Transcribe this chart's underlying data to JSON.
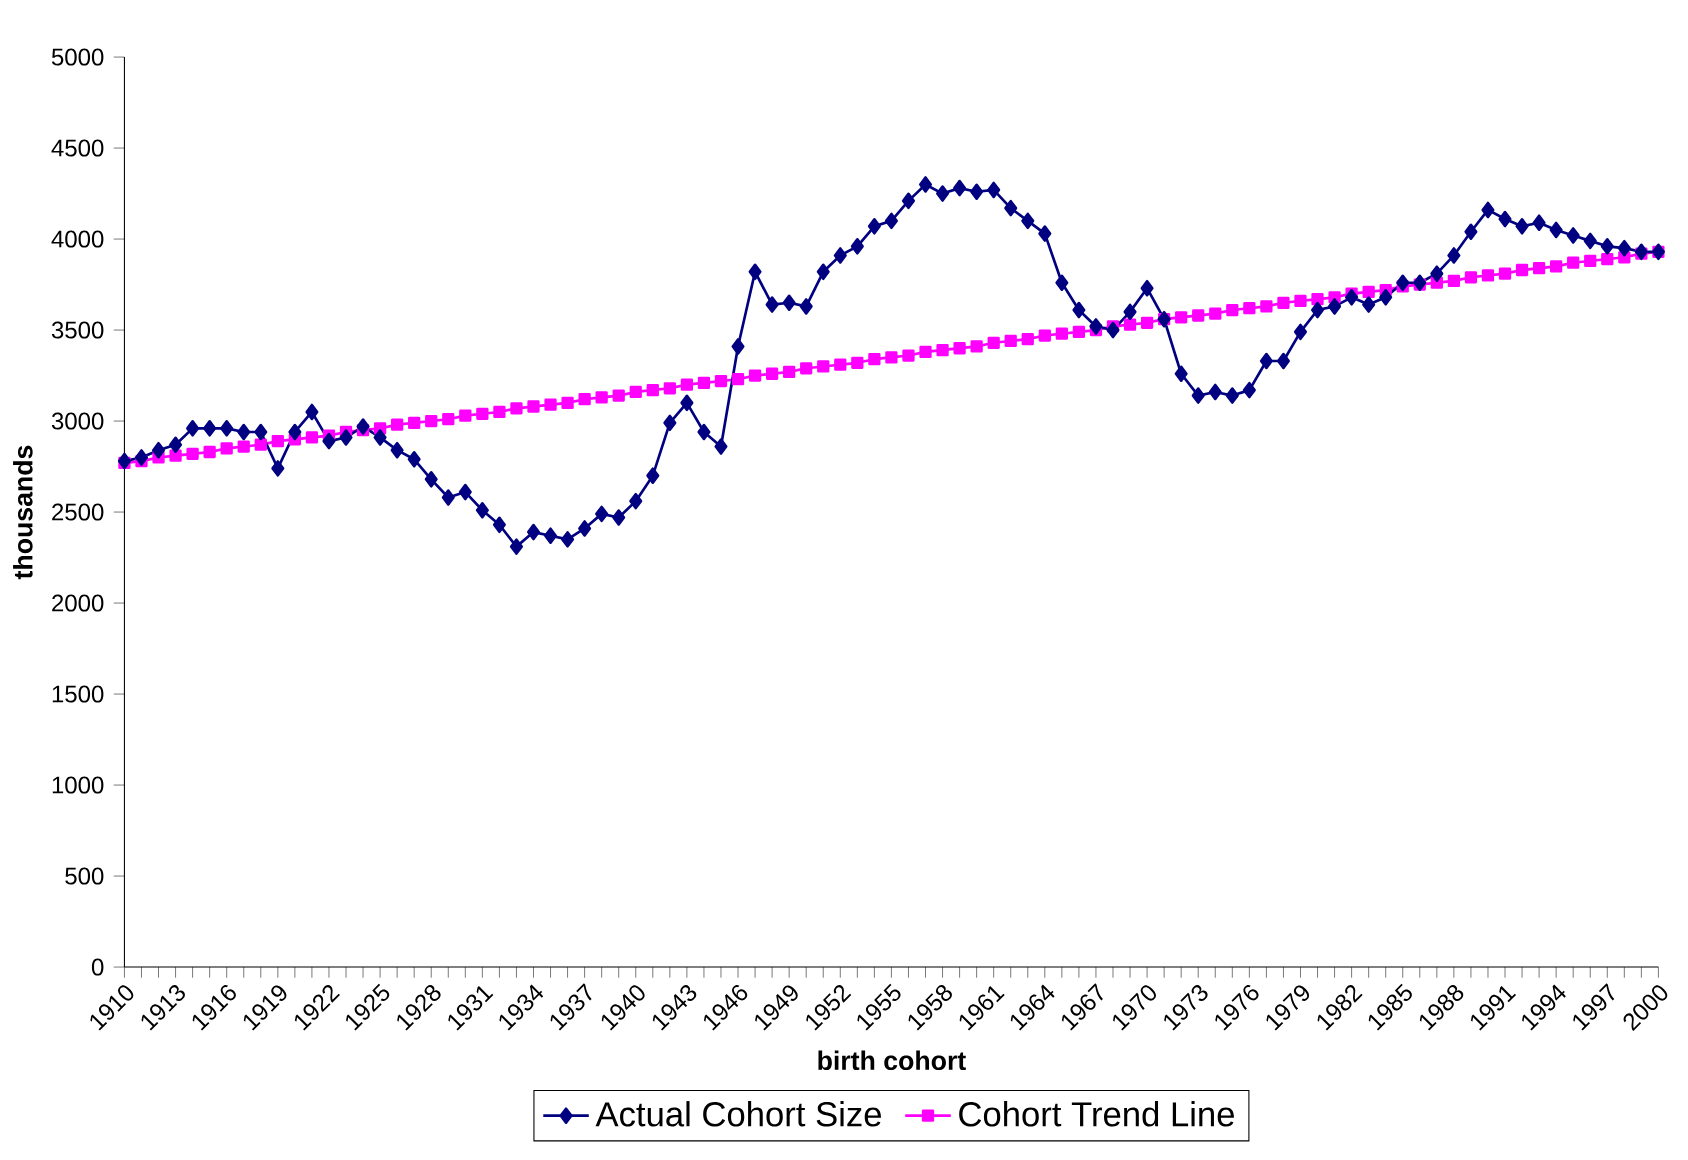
{
  "chart_data": {
    "type": "line",
    "xlabel": "birth cohort",
    "ylabel": "thousands",
    "categories": [
      "1910",
      null,
      null,
      "1913",
      null,
      null,
      "1916",
      null,
      null,
      "1919",
      null,
      null,
      "1922",
      null,
      null,
      "1925",
      null,
      null,
      "1928",
      null,
      null,
      "1931",
      null,
      null,
      "1934",
      null,
      null,
      "1937",
      null,
      null,
      "1940",
      null,
      null,
      "1943",
      null,
      null,
      "1946",
      null,
      null,
      "1949",
      null,
      null,
      "1952",
      null,
      null,
      "1955",
      null,
      null,
      "1958",
      null,
      null,
      "1961",
      null,
      null,
      "1964",
      null,
      null,
      "1967",
      null,
      null,
      "1970",
      null,
      null,
      "1973",
      null,
      null,
      "1976",
      null,
      null,
      "1979",
      null,
      null,
      "1982",
      null,
      null,
      "1985",
      null,
      null,
      "1988",
      null,
      null,
      "1991",
      null,
      null,
      "1994",
      null,
      null,
      "1997",
      null,
      null,
      "2000"
    ],
    "series": [
      {
        "name": "Actual Cohort Size",
        "color": "#000080",
        "marker": "diamond",
        "values": [
          2780,
          2800,
          2840,
          2870,
          2960,
          2960,
          2960,
          2940,
          2940,
          2740,
          2940,
          3050,
          2890,
          2910,
          2970,
          2910,
          2840,
          2790,
          2680,
          2580,
          2610,
          2510,
          2430,
          2310,
          2390,
          2370,
          2350,
          2410,
          2490,
          2470,
          2560,
          2700,
          2990,
          3100,
          2940,
          2860,
          3410,
          3820,
          3640,
          3650,
          3630,
          3820,
          3910,
          3960,
          4070,
          4100,
          4210,
          4300,
          4250,
          4280,
          4260,
          4270,
          4170,
          4100,
          4030,
          3760,
          3610,
          3520,
          3500,
          3600,
          3730,
          3560,
          3260,
          3140,
          3160,
          3140,
          3170,
          3330,
          3330,
          3490,
          3610,
          3630,
          3680,
          3640,
          3680,
          3760,
          3760,
          3810,
          3910,
          4040,
          4160,
          4110,
          4070,
          4090,
          4050,
          4020,
          3990,
          3960,
          3950,
          3930,
          3930
        ]
      },
      {
        "name": "Cohort Trend Line",
        "color": "#ff00ff",
        "marker": "square",
        "values": [
          2770,
          2780,
          2800,
          2810,
          2820,
          2830,
          2850,
          2860,
          2870,
          2890,
          2900,
          2910,
          2920,
          2940,
          2950,
          2960,
          2980,
          2990,
          3000,
          3010,
          3030,
          3040,
          3050,
          3070,
          3080,
          3090,
          3100,
          3120,
          3130,
          3140,
          3160,
          3170,
          3180,
          3200,
          3210,
          3220,
          3230,
          3250,
          3260,
          3270,
          3290,
          3300,
          3310,
          3320,
          3340,
          3350,
          3360,
          3380,
          3390,
          3400,
          3410,
          3430,
          3440,
          3450,
          3470,
          3480,
          3490,
          3500,
          3520,
          3530,
          3540,
          3560,
          3570,
          3580,
          3590,
          3610,
          3620,
          3630,
          3650,
          3660,
          3670,
          3680,
          3700,
          3710,
          3720,
          3740,
          3750,
          3760,
          3770,
          3790,
          3800,
          3810,
          3830,
          3840,
          3850,
          3870,
          3880,
          3890,
          3900,
          3920,
          3930
        ]
      }
    ],
    "ylim": [
      0,
      5000
    ],
    "yticks": [
      0,
      500,
      1000,
      1500,
      2000,
      2500,
      3000,
      3500,
      4000,
      4500,
      5000
    ],
    "grid": false,
    "legend": "bottom"
  }
}
